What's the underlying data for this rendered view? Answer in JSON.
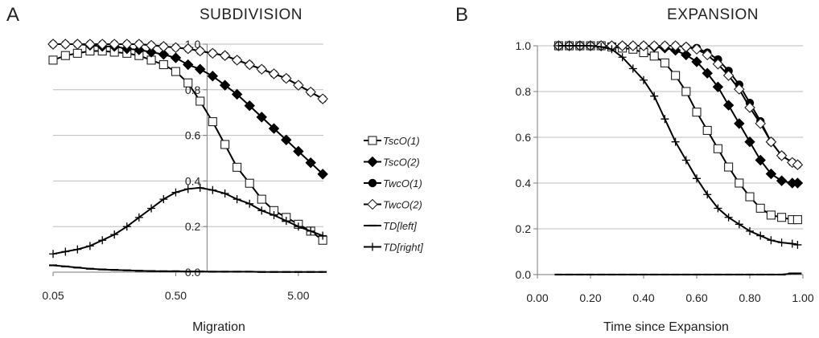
{
  "chart_data": [
    {
      "type": "line",
      "panel_label": "A",
      "title": "SUBDIVISION",
      "xlabel": "Migration",
      "ylabel": "",
      "x_scale": "log",
      "xlim": [
        0.05,
        8.0
      ],
      "ylim": [
        0.0,
        1.0
      ],
      "grid": "horizontal",
      "x_ticks": [
        "0.05",
        "0.50",
        "5.00"
      ],
      "x_tick_values": [
        0.05,
        0.5,
        5.0
      ],
      "y_ticks": [
        "0.0",
        "0.2",
        "0.4",
        "0.6",
        "0.8",
        "1.0"
      ],
      "y_tick_values": [
        0.0,
        0.2,
        0.4,
        0.6,
        0.8,
        1.0
      ],
      "y_axis_crosses_x": 0.9,
      "legend_position": "right",
      "x": [
        0.05,
        0.063,
        0.079,
        0.1,
        0.126,
        0.158,
        0.2,
        0.251,
        0.316,
        0.398,
        0.5,
        0.63,
        0.79,
        1.0,
        1.26,
        1.58,
        2.0,
        2.51,
        3.16,
        3.98,
        5.0,
        6.3,
        7.9
      ],
      "series": [
        {
          "name": "TscO(1)",
          "marker": "open-square",
          "values": [
            0.93,
            0.95,
            0.96,
            0.97,
            0.97,
            0.965,
            0.96,
            0.95,
            0.93,
            0.91,
            0.88,
            0.83,
            0.75,
            0.66,
            0.56,
            0.46,
            0.39,
            0.32,
            0.27,
            0.24,
            0.21,
            0.18,
            0.14
          ]
        },
        {
          "name": "TscO(2)",
          "marker": "filled-diamond",
          "values": [
            1.0,
            1.0,
            1.0,
            0.995,
            0.99,
            0.99,
            0.98,
            0.975,
            0.965,
            0.955,
            0.94,
            0.91,
            0.89,
            0.86,
            0.82,
            0.78,
            0.73,
            0.68,
            0.63,
            0.58,
            0.53,
            0.48,
            0.43
          ]
        },
        {
          "name": "TwcO(1)",
          "marker": "filled-circle",
          "values": [
            1.0,
            1.0,
            1.0,
            1.0,
            1.0,
            1.0,
            1.0,
            1.0,
            0.995,
            0.99,
            0.985,
            0.98,
            0.97,
            0.96,
            0.95,
            0.93,
            0.91,
            0.89,
            0.87,
            0.85,
            0.82,
            0.79,
            0.76
          ]
        },
        {
          "name": "TwcO(2)",
          "marker": "open-diamond",
          "values": [
            1.0,
            1.0,
            1.0,
            1.0,
            1.0,
            1.0,
            1.0,
            1.0,
            0.995,
            0.99,
            0.985,
            0.98,
            0.97,
            0.96,
            0.95,
            0.93,
            0.91,
            0.89,
            0.87,
            0.85,
            0.82,
            0.79,
            0.76
          ]
        },
        {
          "name": "TD[left]",
          "marker": "dash",
          "values": [
            0.03,
            0.025,
            0.02,
            0.015,
            0.012,
            0.01,
            0.008,
            0.006,
            0.005,
            0.004,
            0.004,
            0.003,
            0.003,
            0.002,
            0.002,
            0.002,
            0.002,
            0.001,
            0.001,
            0.001,
            0.001,
            0.001,
            0.001
          ]
        },
        {
          "name": "TD[right]",
          "marker": "plus",
          "values": [
            0.08,
            0.09,
            0.1,
            0.115,
            0.14,
            0.165,
            0.2,
            0.24,
            0.28,
            0.32,
            0.35,
            0.365,
            0.37,
            0.36,
            0.345,
            0.32,
            0.3,
            0.27,
            0.25,
            0.225,
            0.2,
            0.18,
            0.16
          ]
        }
      ]
    },
    {
      "type": "line",
      "panel_label": "B",
      "title": "EXPANSION",
      "xlabel": "Time since Expansion",
      "ylabel": "",
      "x_scale": "linear",
      "xlim": [
        0.0,
        1.0
      ],
      "ylim": [
        0.0,
        1.0
      ],
      "grid": "horizontal",
      "x_ticks": [
        "0.00",
        "0.20",
        "0.40",
        "0.60",
        "0.80",
        "1.00"
      ],
      "x_tick_values": [
        0.0,
        0.2,
        0.4,
        0.6,
        0.8,
        1.0
      ],
      "y_ticks": [
        "0.0",
        "0.2",
        "0.4",
        "0.6",
        "0.8",
        "1.0"
      ],
      "y_tick_values": [
        0.0,
        0.2,
        0.4,
        0.6,
        0.8,
        1.0
      ],
      "x": [
        0.08,
        0.12,
        0.16,
        0.2,
        0.24,
        0.28,
        0.32,
        0.36,
        0.4,
        0.44,
        0.48,
        0.52,
        0.56,
        0.6,
        0.64,
        0.68,
        0.72,
        0.76,
        0.8,
        0.84,
        0.88,
        0.92,
        0.96,
        0.98
      ],
      "series": [
        {
          "name": "TscO(1)",
          "marker": "open-square",
          "values": [
            1.0,
            1.0,
            1.0,
            1.0,
            1.0,
            0.995,
            0.99,
            0.985,
            0.97,
            0.955,
            0.925,
            0.87,
            0.8,
            0.71,
            0.63,
            0.55,
            0.47,
            0.4,
            0.34,
            0.29,
            0.26,
            0.25,
            0.24,
            0.24
          ]
        },
        {
          "name": "TscO(2)",
          "marker": "filled-diamond",
          "values": [
            1.0,
            1.0,
            1.0,
            1.0,
            1.0,
            1.0,
            1.0,
            1.0,
            1.0,
            0.995,
            0.99,
            0.98,
            0.96,
            0.93,
            0.88,
            0.82,
            0.74,
            0.66,
            0.58,
            0.5,
            0.44,
            0.41,
            0.4,
            0.4
          ]
        },
        {
          "name": "TwcO(1)",
          "marker": "filled-circle",
          "values": [
            1.0,
            1.0,
            1.0,
            1.0,
            1.0,
            1.0,
            1.0,
            1.0,
            1.0,
            1.0,
            1.0,
            1.0,
            0.995,
            0.99,
            0.97,
            0.94,
            0.89,
            0.83,
            0.75,
            0.67,
            0.58,
            0.52,
            0.49,
            0.48
          ]
        },
        {
          "name": "TwcO(2)",
          "marker": "open-diamond",
          "values": [
            1.0,
            1.0,
            1.0,
            1.0,
            1.0,
            1.0,
            1.0,
            1.0,
            1.0,
            1.0,
            1.0,
            1.0,
            0.995,
            0.985,
            0.96,
            0.92,
            0.87,
            0.81,
            0.73,
            0.66,
            0.58,
            0.52,
            0.49,
            0.48
          ]
        },
        {
          "name": "TD[left]",
          "marker": "dash",
          "values": [
            0.0,
            0.0,
            0.0,
            0.0,
            0.0,
            0.0,
            0.0,
            0.0,
            0.0,
            0.0,
            0.0,
            0.0,
            0.0,
            0.0,
            0.0,
            0.0,
            0.0,
            0.0,
            0.0,
            0.0,
            0.0,
            0.0,
            0.005,
            0.005
          ]
        },
        {
          "name": "TD[right]",
          "marker": "plus",
          "values": [
            1.0,
            1.0,
            1.0,
            1.0,
            0.995,
            0.985,
            0.95,
            0.9,
            0.85,
            0.78,
            0.68,
            0.58,
            0.5,
            0.42,
            0.35,
            0.29,
            0.25,
            0.22,
            0.19,
            0.17,
            0.15,
            0.14,
            0.135,
            0.13
          ]
        }
      ]
    }
  ],
  "legend": [
    "TscO(1)",
    "TscO(2)",
    "TwcO(1)",
    "TwcO(2)",
    "TD[left]",
    "TD[right]"
  ]
}
